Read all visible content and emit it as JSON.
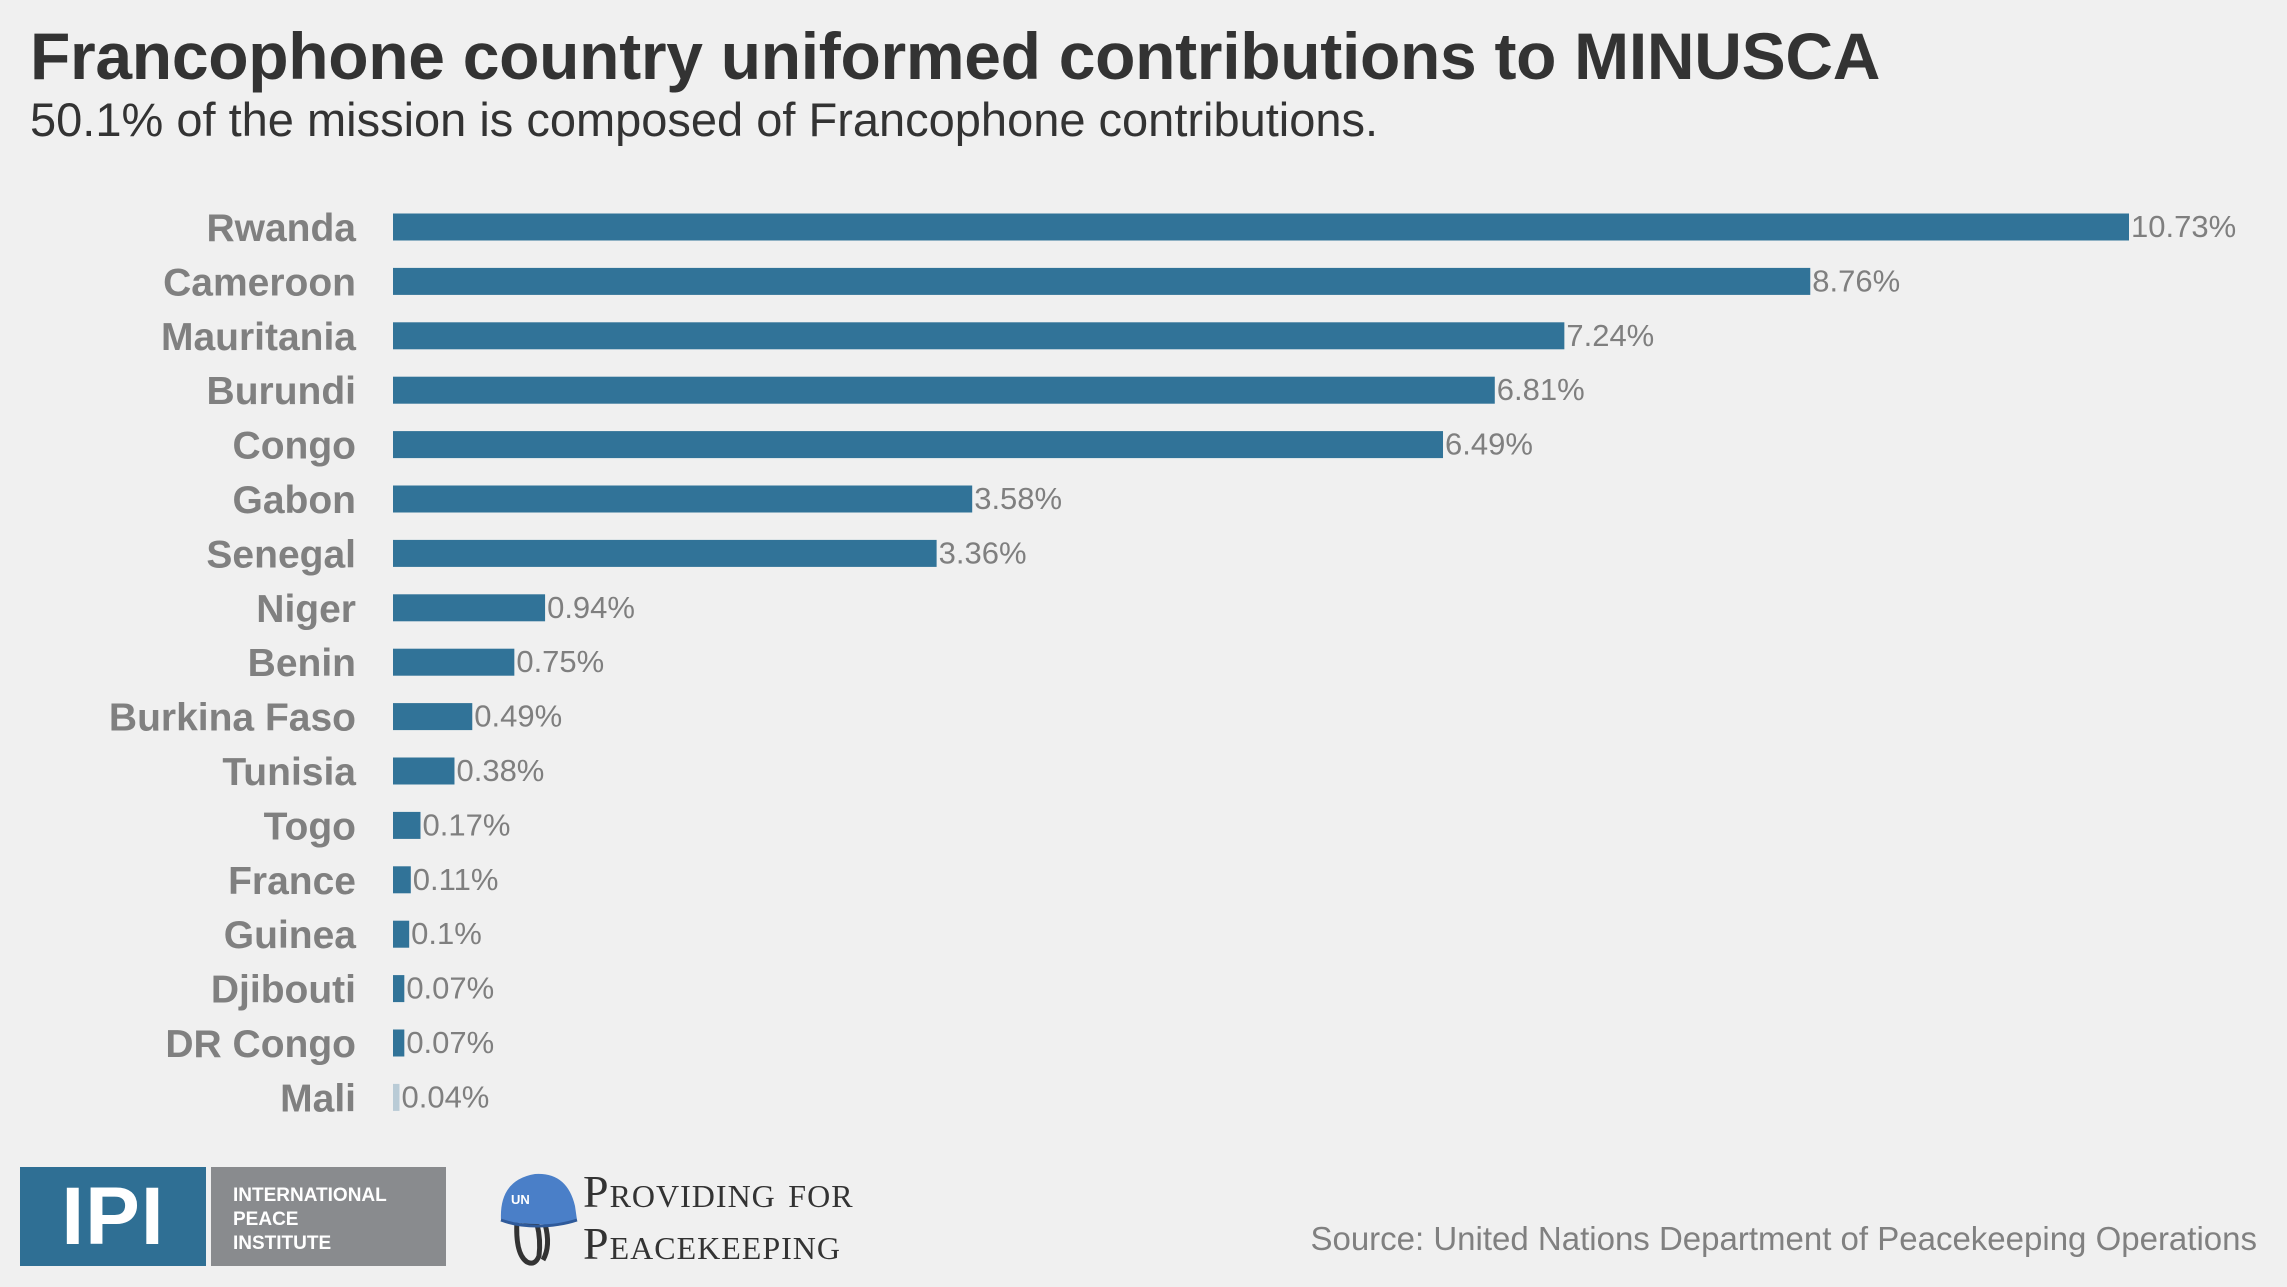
{
  "header": {
    "title": "Francophone country uniformed contributions to MINUSCA",
    "subtitle": "50.1% of the mission is composed of Francophone contributions."
  },
  "chart_data": {
    "type": "bar",
    "orientation": "horizontal",
    "title": "Francophone country uniformed contributions to MINUSCA",
    "subtitle": "50.1% of the mission is composed of Francophone contributions.",
    "xlabel": "",
    "ylabel": "",
    "unit": "%",
    "xlim": [
      0,
      10.73
    ],
    "grid": false,
    "legend": "none",
    "bar_color": "#317398",
    "categories": [
      "Rwanda",
      "Cameroon",
      "Mauritania",
      "Burundi",
      "Congo",
      "Gabon",
      "Senegal",
      "Niger",
      "Benin",
      "Burkina Faso",
      "Tunisia",
      "Togo",
      "France",
      "Guinea",
      "Djibouti",
      "DR Congo",
      "Mali"
    ],
    "values": [
      10.73,
      8.76,
      7.24,
      6.81,
      6.49,
      3.58,
      3.36,
      0.94,
      0.75,
      0.49,
      0.38,
      0.17,
      0.11,
      0.1,
      0.07,
      0.07,
      0.04
    ],
    "value_labels": [
      "10.73%",
      "8.76%",
      "7.24%",
      "6.81%",
      "6.49%",
      "3.58%",
      "3.36%",
      "0.94%",
      "0.75%",
      "0.49%",
      "0.38%",
      "0.17%",
      "0.11%",
      "0.1%",
      "0.07%",
      "0.07%",
      "0.04%"
    ]
  },
  "footer": {
    "ipi_logo": {
      "abbr": "IPI",
      "lines": [
        "INTERNATIONAL",
        "PEACE",
        "INSTITUTE"
      ],
      "colors": {
        "left": "#2f6f94",
        "right": "#898b8e"
      }
    },
    "p4p_logo": {
      "icon": "un-helmet-icon",
      "helmet_text": "UN",
      "lines": [
        "Providing for",
        "Peacekeeping"
      ],
      "helmet_color": "#4a7fc8"
    },
    "source": "Source: United Nations Department of Peacekeeping Operations"
  }
}
